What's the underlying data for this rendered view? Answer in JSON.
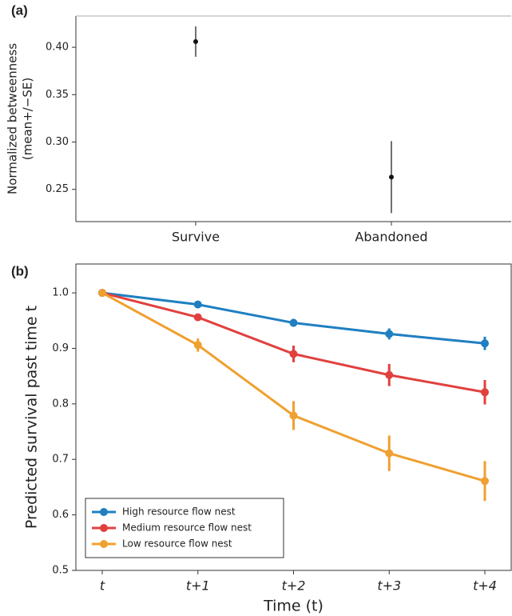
{
  "chart_data": [
    {
      "type": "point",
      "panel_label": "(a)",
      "y_label": [
        "Normalized betweenness",
        "(mean+/−SE)"
      ],
      "categories": [
        "Survive",
        "Abandoned"
      ],
      "values": [
        0.406,
        0.263
      ],
      "errors": [
        0.016,
        0.038
      ],
      "color": "#111111",
      "ylim": [
        0.216,
        0.433
      ],
      "yticks": [
        {
          "value": 0.25,
          "label": "0.25"
        },
        {
          "value": 0.3,
          "label": "0.30"
        },
        {
          "value": 0.35,
          "label": "0.35"
        },
        {
          "value": 0.4,
          "label": "0.40"
        }
      ]
    },
    {
      "type": "line",
      "panel_label": "(b)",
      "y_label": "Predicted survival past time t",
      "x_label": "Time (t)",
      "categories": [
        "t",
        "t+1",
        "t+2",
        "t+3",
        "t+4"
      ],
      "series": [
        {
          "name": "High resource flow nest",
          "color": "#1f7fc1",
          "values": [
            1.0,
            0.979,
            0.946,
            0.926,
            0.909
          ],
          "errors": [
            0,
            0.004,
            0.007,
            0.01,
            0.012
          ]
        },
        {
          "name": "Medium resource flow nest",
          "color": "#e0413f",
          "values": [
            1.0,
            0.956,
            0.89,
            0.852,
            0.821
          ],
          "errors": [
            0,
            0.006,
            0.015,
            0.02,
            0.022
          ]
        },
        {
          "name": "Low resource flow nest",
          "color": "#f0a030",
          "values": [
            1.0,
            0.906,
            0.779,
            0.711,
            0.661
          ],
          "errors": [
            0,
            0.012,
            0.026,
            0.032,
            0.036
          ]
        }
      ],
      "ylim": [
        0.5,
        1.052
      ],
      "yticks": [
        {
          "value": 0.5,
          "label": "0.5"
        },
        0.6,
        0.7,
        0.8,
        0.9,
        {
          "value": 1.0,
          "label": "1.0"
        }
      ],
      "legend": "lower left"
    }
  ]
}
